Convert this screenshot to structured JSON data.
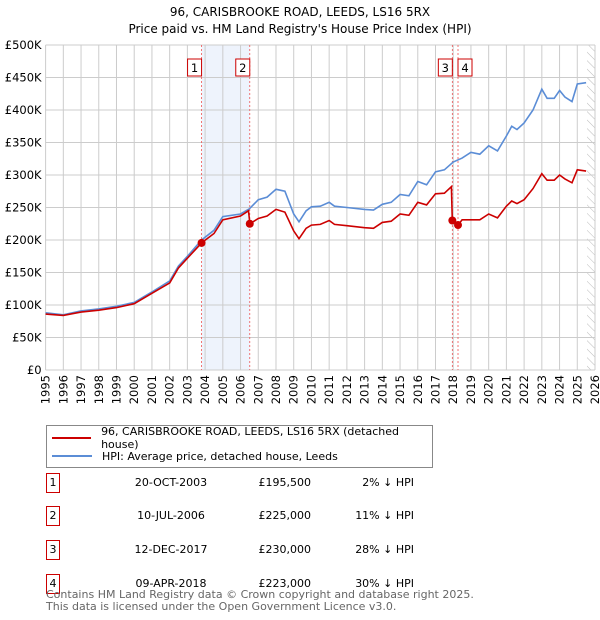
{
  "chart_data": {
    "type": "line",
    "title": "96, CARISBROOKE ROAD, LEEDS, LS16 5RX",
    "subtitle": "Price paid vs. HM Land Registry's House Price Index (HPI)",
    "xlim": [
      1995,
      2026
    ],
    "ylim": [
      0,
      500000
    ],
    "x_ticks": [
      "1995",
      "1996",
      "1997",
      "1998",
      "1999",
      "2000",
      "2001",
      "2002",
      "2003",
      "2004",
      "2005",
      "2006",
      "2007",
      "2008",
      "2009",
      "2010",
      "2011",
      "2012",
      "2013",
      "2014",
      "2015",
      "2016",
      "2017",
      "2018",
      "2019",
      "2020",
      "2021",
      "2022",
      "2023",
      "2024",
      "2025",
      "2026"
    ],
    "y_ticks": [
      {
        "v": 0,
        "label": "£0"
      },
      {
        "v": 50000,
        "label": "£50K"
      },
      {
        "v": 100000,
        "label": "£100K"
      },
      {
        "v": 150000,
        "label": "£150K"
      },
      {
        "v": 200000,
        "label": "£200K"
      },
      {
        "v": 250000,
        "label": "£250K"
      },
      {
        "v": 300000,
        "label": "£300K"
      },
      {
        "v": 350000,
        "label": "£350K"
      },
      {
        "v": 400000,
        "label": "£400K"
      },
      {
        "v": 450000,
        "label": "£450K"
      },
      {
        "v": 500000,
        "label": "£500K"
      }
    ],
    "grid": true,
    "series": [
      {
        "name": "96, CARISBROOKE ROAD, LEEDS, LS16 5RX (detached house)",
        "color": "#cc0000",
        "x": [
          1995,
          1996,
          1997,
          1998,
          1999,
          2000,
          2001,
          2002,
          2002.5,
          2003,
          2003.8,
          2004.5,
          2005,
          2006,
          2006.45,
          2006.53,
          2007,
          2007.5,
          2008,
          2008.5,
          2009,
          2009.3,
          2009.7,
          2010,
          2010.5,
          2011,
          2011.3,
          2012,
          2013,
          2013.5,
          2014,
          2014.5,
          2015,
          2015.5,
          2016,
          2016.5,
          2017,
          2017.5,
          2017.9,
          2017.95,
          2018.27,
          2018.5,
          2019,
          2019.5,
          2020,
          2020.5,
          2021,
          2021.3,
          2021.6,
          2022,
          2022.5,
          2023,
          2023.3,
          2023.7,
          2024,
          2024.3,
          2024.7,
          2025,
          2025.5
        ],
        "y": [
          86000,
          84000,
          89000,
          92000,
          96000,
          102000,
          118000,
          134000,
          157000,
          172000,
          195500,
          210000,
          231000,
          237000,
          245000,
          225000,
          233000,
          237000,
          247000,
          243000,
          214000,
          202000,
          218000,
          223000,
          224000,
          230000,
          224000,
          222000,
          219000,
          218000,
          227000,
          229000,
          240000,
          238000,
          258000,
          254000,
          271000,
          272000,
          282000,
          230000,
          223000,
          231000,
          231000,
          231000,
          240000,
          234000,
          252000,
          260000,
          256000,
          262000,
          279000,
          302000,
          292000,
          292000,
          300000,
          294000,
          288000,
          308000,
          306000
        ]
      },
      {
        "name": "HPI: Average price, detached house, Leeds",
        "color": "#5b8dd6",
        "x": [
          1995,
          1996,
          1997,
          1998,
          1999,
          2000,
          2001,
          2002,
          2002.5,
          2003,
          2003.8,
          2004.5,
          2005,
          2006,
          2006.5,
          2007,
          2007.5,
          2008,
          2008.5,
          2009,
          2009.3,
          2009.7,
          2010,
          2010.5,
          2011,
          2011.3,
          2012,
          2013,
          2013.5,
          2014,
          2014.5,
          2015,
          2015.5,
          2016,
          2016.5,
          2017,
          2017.5,
          2018,
          2018.5,
          2019,
          2019.5,
          2020,
          2020.5,
          2021,
          2021.3,
          2021.6,
          2022,
          2022.5,
          2023,
          2023.3,
          2023.7,
          2024,
          2024.3,
          2024.7,
          2025,
          2025.5
        ],
        "y": [
          88000,
          85000,
          91000,
          94000,
          98000,
          104000,
          120000,
          137000,
          160000,
          175000,
          200000,
          215000,
          236000,
          240000,
          248000,
          262000,
          266000,
          278000,
          275000,
          240000,
          228000,
          245000,
          251000,
          252000,
          258000,
          252000,
          250000,
          247000,
          246000,
          255000,
          258000,
          270000,
          268000,
          290000,
          285000,
          305000,
          308000,
          320000,
          326000,
          335000,
          332000,
          345000,
          337000,
          360000,
          375000,
          370000,
          380000,
          400000,
          432000,
          418000,
          418000,
          430000,
          420000,
          413000,
          440000,
          442000
        ]
      }
    ],
    "sales": [
      {
        "n": "1",
        "x": 2003.8,
        "y": 195500,
        "date": "20-OCT-2003",
        "price": "£195,500",
        "pct": "2% ↓ HPI"
      },
      {
        "n": "2",
        "x": 2006.52,
        "y": 225000,
        "date": "10-JUL-2006",
        "price": "£225,000",
        "pct": "11% ↓ HPI"
      },
      {
        "n": "3",
        "x": 2017.95,
        "y": 230000,
        "date": "12-DEC-2017",
        "price": "£230,000",
        "pct": "28% ↓ HPI"
      },
      {
        "n": "4",
        "x": 2018.27,
        "y": 223000,
        "date": "09-APR-2018",
        "price": "£223,000",
        "pct": "30% ↓ HPI"
      }
    ],
    "legend": "below"
  },
  "footer": {
    "line1": "Contains HM Land Registry data © Crown copyright and database right 2025.",
    "line2": "This data is licensed under the Open Government Licence v3.0."
  }
}
